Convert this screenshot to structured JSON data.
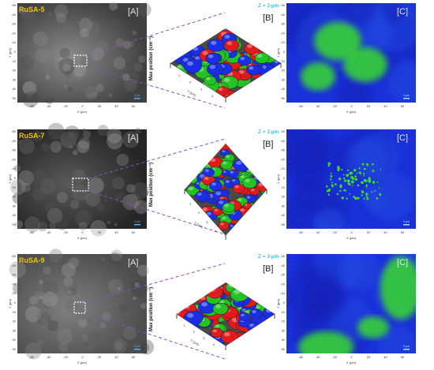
{
  "rows": [
    {
      "sample_label": "RuSA-5",
      "panel_a_label": "[A]",
      "panel_b_label": "[B]",
      "panel_c_label": "[C]",
      "z_label": "Z = 3 μm",
      "y_axis_label": "Max position (cm⁻¹)",
      "x_axis_label": "X (μm)",
      "y_map_label": "Y (μm)",
      "scale_bar": "5 μm"
    },
    {
      "sample_label": "RuSA-7",
      "panel_a_label": "[A]",
      "panel_b_label": "[B]",
      "panel_c_label": "[C]",
      "z_label": "Z = 3 μm",
      "y_axis_label": "Max position (cm⁻¹)",
      "x_axis_label": "X (μm)",
      "y_map_label": "Y (μm)",
      "scale_bar": "5 μm"
    },
    {
      "sample_label": "RuSA-9",
      "panel_a_label": "[A]",
      "panel_b_label": "[B]",
      "panel_c_label": "[C]",
      "z_label": "Z = 3 μm",
      "y_axis_label": "Max position (cm⁻¹)",
      "x_axis_label": "X (μm)",
      "y_map_label": "Y (μm)",
      "scale_bar": "5 μm"
    }
  ],
  "x_ticks": [
    "-60",
    "-40",
    "-20",
    "0",
    "20",
    "40",
    "60"
  ],
  "y_ticks": [
    "-50",
    "-40",
    "-30",
    "-20",
    "-10",
    "0",
    "10",
    "20",
    "30",
    "40",
    "50"
  ],
  "surface_axis_ticks": [
    "1",
    "2",
    "3",
    "4"
  ],
  "surface_axis_name": "Y (μm)",
  "colors": {
    "sample_label": "#f2c500",
    "z_label": "#00a0e6",
    "dash_line": "#8a4fbf",
    "surface_red": "#e11a1a",
    "surface_green": "#22c322",
    "surface_blue": "#1a2ee6",
    "map_blue": "#1a30d8",
    "map_green": "#39d92e"
  }
}
